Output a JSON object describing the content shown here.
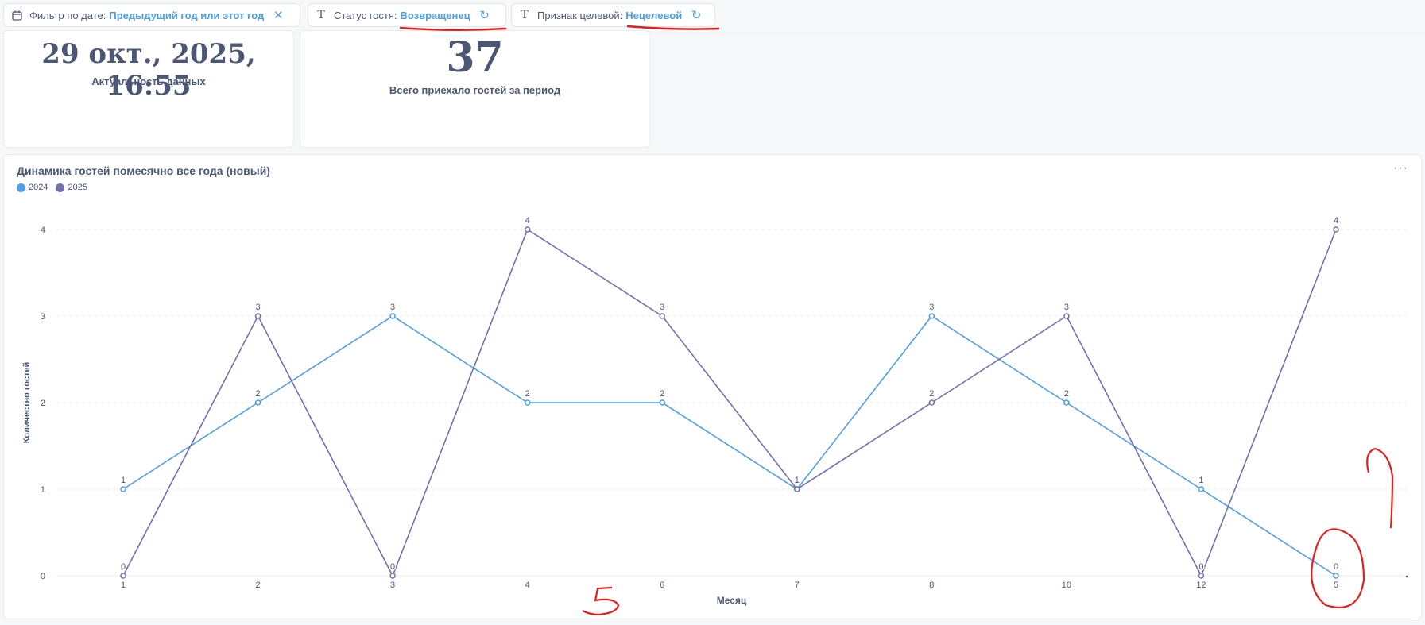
{
  "filters": [
    {
      "icon": "calendar-icon",
      "label": "Фильтр по дате:",
      "value": "Предыдущий год или этот год",
      "action_icon": "close-icon"
    },
    {
      "icon": "text-type-icon",
      "label": "Статус гостя:",
      "value": "Возвращенец",
      "action_icon": "reset-icon"
    },
    {
      "icon": "text-type-icon",
      "label": "Признак целевой:",
      "value": "Нецелевой",
      "action_icon": "reset-icon"
    }
  ],
  "cards": {
    "freshness": {
      "value": "29 окт., 2025, 16:55",
      "label": "Актуальность данных"
    },
    "total_guests": {
      "value": "37",
      "label": "Всего приехало гостей за период"
    }
  },
  "chart": {
    "title": "Динамика гостей помесячно все года (новый)",
    "menu_icon": "ellipsis-icon",
    "colors": {
      "2024": "#509ee3",
      "2025": "#7172ad",
      "grid": "#e6e8ec"
    }
  },
  "chart_data": {
    "type": "line",
    "categories": [
      "1",
      "2",
      "3",
      "4",
      "6",
      "7",
      "8",
      "10",
      "12",
      "5"
    ],
    "series": [
      {
        "name": "2024",
        "values": [
          1,
          2,
          3,
          2,
          2,
          1,
          3,
          2,
          1,
          0
        ]
      },
      {
        "name": "2025",
        "values": [
          0,
          3,
          0,
          4,
          3,
          1,
          2,
          3,
          0,
          4
        ]
      }
    ],
    "xlabel": "Месяц",
    "ylabel": "Количество гостей",
    "ylim": [
      0,
      4
    ],
    "yticks": [
      0,
      1,
      2,
      3,
      4
    ],
    "grid": true,
    "legend": "top-left"
  }
}
